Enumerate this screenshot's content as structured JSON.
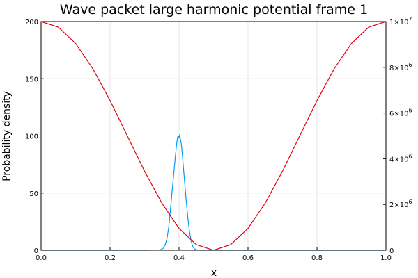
{
  "chart_data": {
    "type": "line",
    "title": "Wave packet large harmonic potential frame 1",
    "xlabel": "x",
    "ylabel": "Probability density",
    "xlim": [
      0,
      1
    ],
    "ylim": [
      0,
      200
    ],
    "y2lim": [
      0,
      10000000
    ],
    "grid": true,
    "x_ticks": [
      "0.0",
      "0.2",
      "0.4",
      "0.6",
      "0.8",
      "1.0"
    ],
    "y_ticks": [
      "0",
      "50",
      "100",
      "150",
      "200"
    ],
    "y2_ticks": [
      {
        "base": "0",
        "exp": ""
      },
      {
        "base": "2×10",
        "exp": "6"
      },
      {
        "base": "4×10",
        "exp": "6"
      },
      {
        "base": "6×10",
        "exp": "6"
      },
      {
        "base": "8×10",
        "exp": "6"
      },
      {
        "base": "1×10",
        "exp": "7"
      }
    ],
    "x_tick_values": [
      0,
      0.2,
      0.4,
      0.6,
      0.8,
      1.0
    ],
    "y_tick_values": [
      0,
      50,
      100,
      150,
      200
    ],
    "y2_tick_values": [
      0,
      2000000,
      4000000,
      6000000,
      8000000,
      10000000
    ],
    "series": [
      {
        "axis": "left",
        "color": "#009af9",
        "x": [
          0.0,
          0.3,
          0.34,
          0.35,
          0.355,
          0.36,
          0.365,
          0.37,
          0.375,
          0.38,
          0.385,
          0.39,
          0.393,
          0.396,
          0.398,
          0.4,
          0.402,
          0.404,
          0.407,
          0.41,
          0.415,
          0.42,
          0.425,
          0.43,
          0.435,
          0.44,
          0.445,
          0.45,
          0.46,
          0.5,
          1.0
        ],
        "y": [
          0,
          0,
          0.2,
          0.8,
          2,
          5,
          10,
          20,
          35,
          52,
          68,
          84,
          93,
          99,
          100,
          98,
          101,
          97,
          92,
          82,
          64,
          46,
          30,
          17,
          8,
          3,
          1.2,
          0.4,
          0,
          0,
          0
        ]
      },
      {
        "axis": "right",
        "color": "#e0000f",
        "x": [
          0.0,
          0.05,
          0.1,
          0.15,
          0.2,
          0.25,
          0.3,
          0.35,
          0.4,
          0.45,
          0.5,
          0.55,
          0.6,
          0.65,
          0.7,
          0.75,
          0.8,
          0.85,
          0.9,
          0.95,
          1.0
        ],
        "y": [
          10000000,
          9755283,
          9045085,
          7938926,
          6545085,
          5000000,
          3454915,
          2061074,
          954915,
          244717,
          0,
          244717,
          954915,
          2061074,
          3454915,
          5000000,
          6545085,
          7938926,
          9045085,
          9755283,
          10000000
        ]
      }
    ]
  }
}
